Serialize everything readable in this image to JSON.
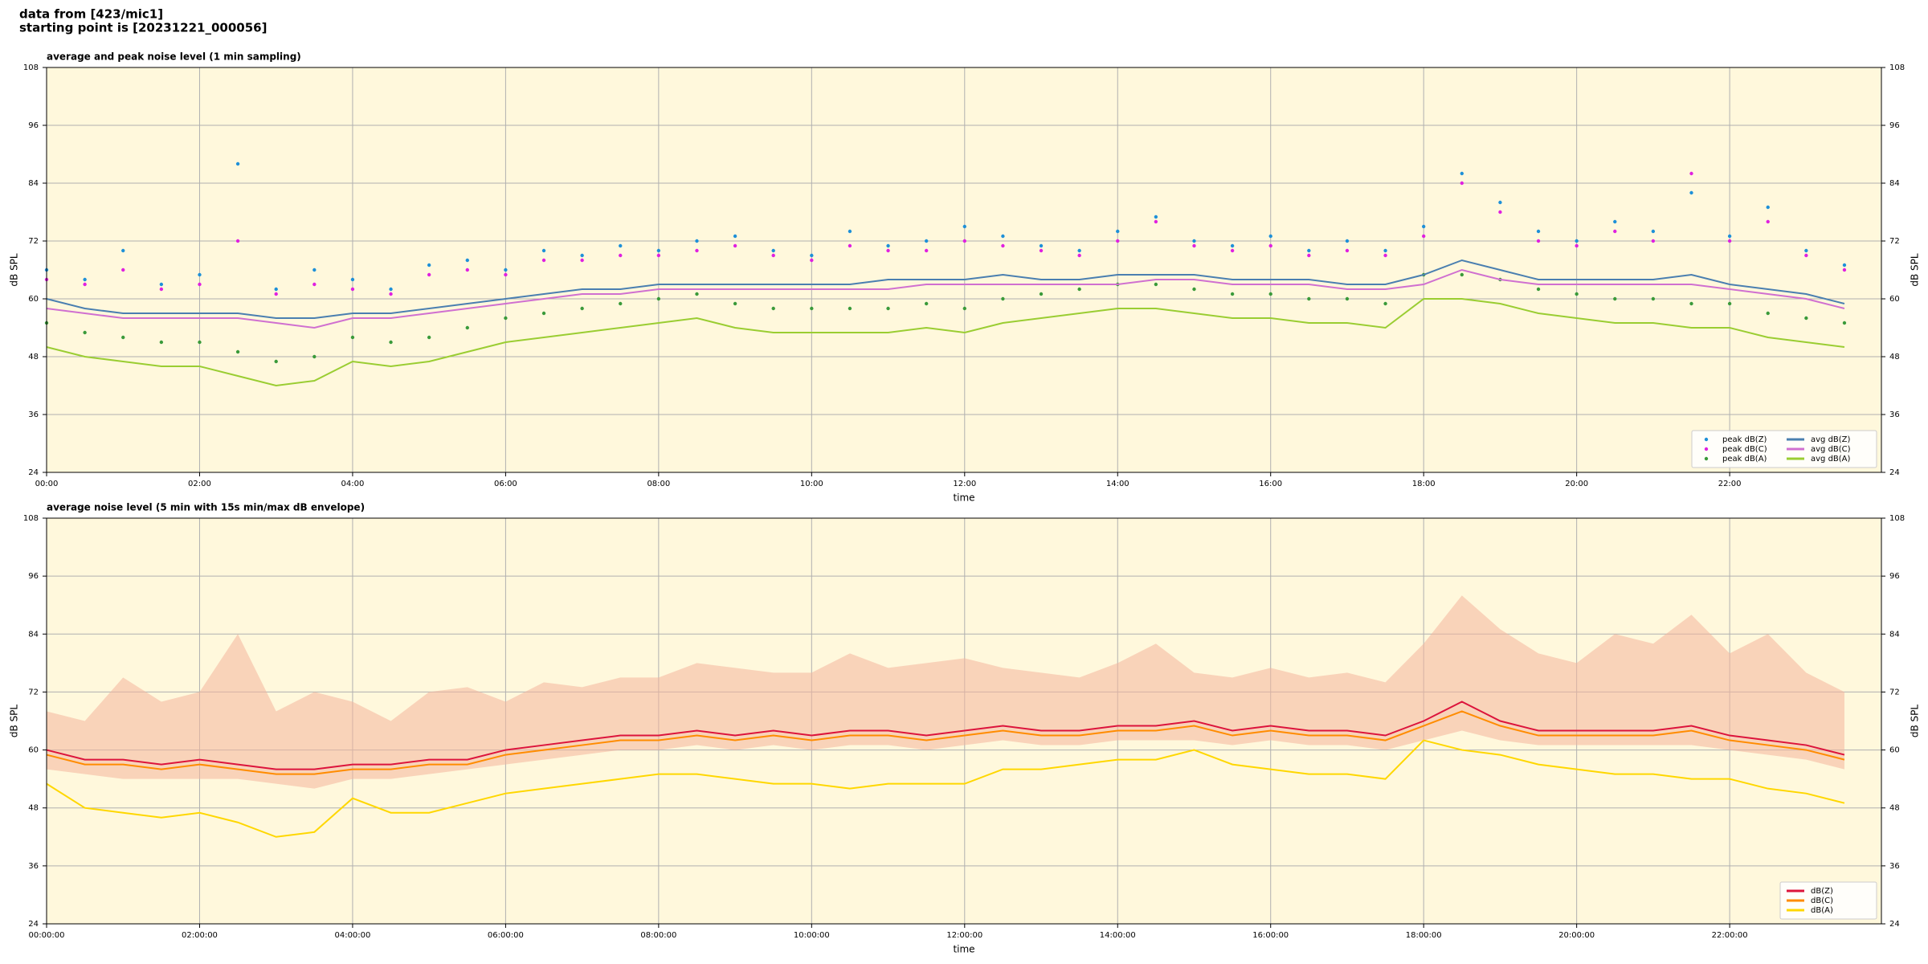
{
  "header": {
    "lines": [
      "data from [423/mic1]",
      "starting point is [20231221_000056]"
    ]
  },
  "chart_data": [
    {
      "type": "line",
      "title": "average and peak noise level (1 min sampling)",
      "xlabel": "time",
      "ylabel": "dB SPL",
      "x": [
        "00:00",
        "00:30",
        "01:00",
        "01:30",
        "02:00",
        "02:30",
        "03:00",
        "03:30",
        "04:00",
        "04:30",
        "05:00",
        "05:30",
        "06:00",
        "06:30",
        "07:00",
        "07:30",
        "08:00",
        "08:30",
        "09:00",
        "09:30",
        "10:00",
        "10:30",
        "11:00",
        "11:30",
        "12:00",
        "12:30",
        "13:00",
        "13:30",
        "14:00",
        "14:30",
        "15:00",
        "15:30",
        "16:00",
        "16:30",
        "17:00",
        "17:30",
        "18:00",
        "18:30",
        "19:00",
        "19:30",
        "20:00",
        "20:30",
        "21:00",
        "21:30",
        "22:00",
        "22:30",
        "23:00",
        "23:30"
      ],
      "xlim": [
        "00:00",
        "23:59"
      ],
      "xticks": [
        "00:00",
        "02:00",
        "04:00",
        "06:00",
        "08:00",
        "10:00",
        "12:00",
        "14:00",
        "16:00",
        "18:00",
        "20:00",
        "22:00"
      ],
      "ylim": [
        24,
        108
      ],
      "yticks": [
        24,
        36,
        48,
        60,
        72,
        84,
        96,
        108
      ],
      "grid": true,
      "legend": "lower right",
      "background": "#fff8dc",
      "series": [
        {
          "name": "peak dB(Z)",
          "style": "points",
          "color": "#1e90d8",
          "values": [
            66,
            64,
            70,
            63,
            65,
            88,
            62,
            66,
            64,
            62,
            67,
            68,
            66,
            70,
            69,
            71,
            70,
            72,
            73,
            70,
            69,
            74,
            71,
            72,
            75,
            73,
            71,
            70,
            74,
            77,
            72,
            71,
            73,
            70,
            72,
            70,
            75,
            86,
            80,
            74,
            72,
            76,
            74,
            82,
            73,
            79,
            70,
            67
          ]
        },
        {
          "name": "peak dB(C)",
          "style": "points",
          "color": "#e020e0",
          "values": [
            64,
            63,
            66,
            62,
            63,
            72,
            61,
            63,
            62,
            61,
            65,
            66,
            65,
            68,
            68,
            69,
            69,
            70,
            71,
            69,
            68,
            71,
            70,
            70,
            72,
            71,
            70,
            69,
            72,
            76,
            71,
            70,
            71,
            69,
            70,
            69,
            73,
            84,
            78,
            72,
            71,
            74,
            72,
            86,
            72,
            76,
            69,
            66
          ]
        },
        {
          "name": "peak dB(A)",
          "style": "points",
          "color": "#3a9a3a",
          "values": [
            55,
            53,
            52,
            51,
            51,
            49,
            47,
            48,
            52,
            51,
            52,
            54,
            56,
            57,
            58,
            59,
            60,
            61,
            59,
            58,
            58,
            58,
            58,
            59,
            58,
            60,
            61,
            62,
            63,
            63,
            62,
            61,
            61,
            60,
            60,
            59,
            65,
            65,
            64,
            62,
            61,
            60,
            60,
            59,
            59,
            57,
            56,
            55
          ]
        },
        {
          "name": "avg dB(Z)",
          "style": "line",
          "color": "#4a7fb0",
          "values": [
            60,
            58,
            57,
            57,
            57,
            57,
            56,
            56,
            57,
            57,
            58,
            59,
            60,
            61,
            62,
            62,
            63,
            63,
            63,
            63,
            63,
            63,
            64,
            64,
            64,
            65,
            64,
            64,
            65,
            65,
            65,
            64,
            64,
            64,
            63,
            63,
            65,
            68,
            66,
            64,
            64,
            64,
            64,
            65,
            63,
            62,
            61,
            59
          ]
        },
        {
          "name": "avg dB(C)",
          "style": "line",
          "color": "#d070d0",
          "values": [
            58,
            57,
            56,
            56,
            56,
            56,
            55,
            54,
            56,
            56,
            57,
            58,
            59,
            60,
            61,
            61,
            62,
            62,
            62,
            62,
            62,
            62,
            62,
            63,
            63,
            63,
            63,
            63,
            63,
            64,
            64,
            63,
            63,
            63,
            62,
            62,
            63,
            66,
            64,
            63,
            63,
            63,
            63,
            63,
            62,
            61,
            60,
            58
          ]
        },
        {
          "name": "avg dB(A)",
          "style": "line",
          "color": "#9acd32",
          "values": [
            50,
            48,
            47,
            46,
            46,
            44,
            42,
            43,
            47,
            46,
            47,
            49,
            51,
            52,
            53,
            54,
            55,
            56,
            54,
            53,
            53,
            53,
            53,
            54,
            53,
            55,
            56,
            57,
            58,
            58,
            57,
            56,
            56,
            55,
            55,
            54,
            60,
            60,
            59,
            57,
            56,
            55,
            55,
            54,
            54,
            52,
            51,
            50
          ]
        }
      ]
    },
    {
      "type": "line",
      "title": "average noise level (5 min with 15s min/max dB envelope)",
      "xlabel": "time",
      "ylabel": "dB SPL",
      "x": [
        "00:00",
        "00:30",
        "01:00",
        "01:30",
        "02:00",
        "02:30",
        "03:00",
        "03:30",
        "04:00",
        "04:30",
        "05:00",
        "05:30",
        "06:00",
        "06:30",
        "07:00",
        "07:30",
        "08:00",
        "08:30",
        "09:00",
        "09:30",
        "10:00",
        "10:30",
        "11:00",
        "11:30",
        "12:00",
        "12:30",
        "13:00",
        "13:30",
        "14:00",
        "14:30",
        "15:00",
        "15:30",
        "16:00",
        "16:30",
        "17:00",
        "17:30",
        "18:00",
        "18:30",
        "19:00",
        "19:30",
        "20:00",
        "20:30",
        "21:00",
        "21:30",
        "22:00",
        "22:30",
        "23:00",
        "23:30"
      ],
      "xlim": [
        "00:00",
        "23:59"
      ],
      "xticks": [
        {
          "value": "00:00",
          "label": "00:00:00"
        },
        {
          "value": "02:00",
          "label": "02:00:00"
        },
        {
          "value": "04:00",
          "label": "04:00:00"
        },
        {
          "value": "06:00",
          "label": "06:00:00"
        },
        {
          "value": "08:00",
          "label": "08:00:00"
        },
        {
          "value": "10:00",
          "label": "10:00:00"
        },
        {
          "value": "12:00",
          "label": "12:00:00"
        },
        {
          "value": "14:00",
          "label": "14:00:00"
        },
        {
          "value": "16:00",
          "label": "16:00:00"
        },
        {
          "value": "18:00",
          "label": "18:00:00"
        },
        {
          "value": "20:00",
          "label": "20:00:00"
        },
        {
          "value": "22:00",
          "label": "22:00:00"
        }
      ],
      "ylim": [
        24,
        108
      ],
      "yticks": [
        24,
        36,
        48,
        60,
        72,
        84,
        96,
        108
      ],
      "grid": true,
      "legend": "lower right",
      "background": "#fff8dc",
      "envelope": {
        "color": "#f4b49c",
        "upper": [
          68,
          66,
          75,
          70,
          72,
          84,
          68,
          72,
          70,
          66,
          72,
          73,
          70,
          74,
          73,
          75,
          75,
          78,
          77,
          76,
          76,
          80,
          77,
          78,
          79,
          77,
          76,
          75,
          78,
          82,
          76,
          75,
          77,
          75,
          76,
          74,
          82,
          92,
          85,
          80,
          78,
          84,
          82,
          88,
          80,
          84,
          76,
          72
        ],
        "lower": [
          56,
          55,
          54,
          54,
          54,
          54,
          53,
          52,
          54,
          54,
          55,
          56,
          57,
          58,
          59,
          60,
          60,
          61,
          60,
          61,
          60,
          61,
          61,
          60,
          61,
          62,
          61,
          61,
          62,
          62,
          62,
          61,
          62,
          61,
          61,
          60,
          62,
          64,
          62,
          61,
          61,
          61,
          61,
          61,
          60,
          59,
          58,
          56
        ]
      },
      "series": [
        {
          "name": "dB(Z)",
          "style": "line",
          "color": "#dc143c",
          "values": [
            60,
            58,
            58,
            57,
            58,
            57,
            56,
            56,
            57,
            57,
            58,
            58,
            60,
            61,
            62,
            63,
            63,
            64,
            63,
            64,
            63,
            64,
            64,
            63,
            64,
            65,
            64,
            64,
            65,
            65,
            66,
            64,
            65,
            64,
            64,
            63,
            66,
            70,
            66,
            64,
            64,
            64,
            64,
            65,
            63,
            62,
            61,
            59
          ]
        },
        {
          "name": "dB(C)",
          "style": "line",
          "color": "#ff8c00",
          "values": [
            59,
            57,
            57,
            56,
            57,
            56,
            55,
            55,
            56,
            56,
            57,
            57,
            59,
            60,
            61,
            62,
            62,
            63,
            62,
            63,
            62,
            63,
            63,
            62,
            63,
            64,
            63,
            63,
            64,
            64,
            65,
            63,
            64,
            63,
            63,
            62,
            65,
            68,
            65,
            63,
            63,
            63,
            63,
            64,
            62,
            61,
            60,
            58
          ]
        },
        {
          "name": "dB(A)",
          "style": "line",
          "color": "#ffd700",
          "values": [
            53,
            48,
            47,
            46,
            47,
            45,
            42,
            43,
            50,
            47,
            47,
            49,
            51,
            52,
            53,
            54,
            55,
            55,
            54,
            53,
            53,
            52,
            53,
            53,
            53,
            56,
            56,
            57,
            58,
            58,
            60,
            57,
            56,
            55,
            55,
            54,
            62,
            60,
            59,
            57,
            56,
            55,
            55,
            54,
            54,
            52,
            51,
            49
          ]
        }
      ]
    }
  ]
}
